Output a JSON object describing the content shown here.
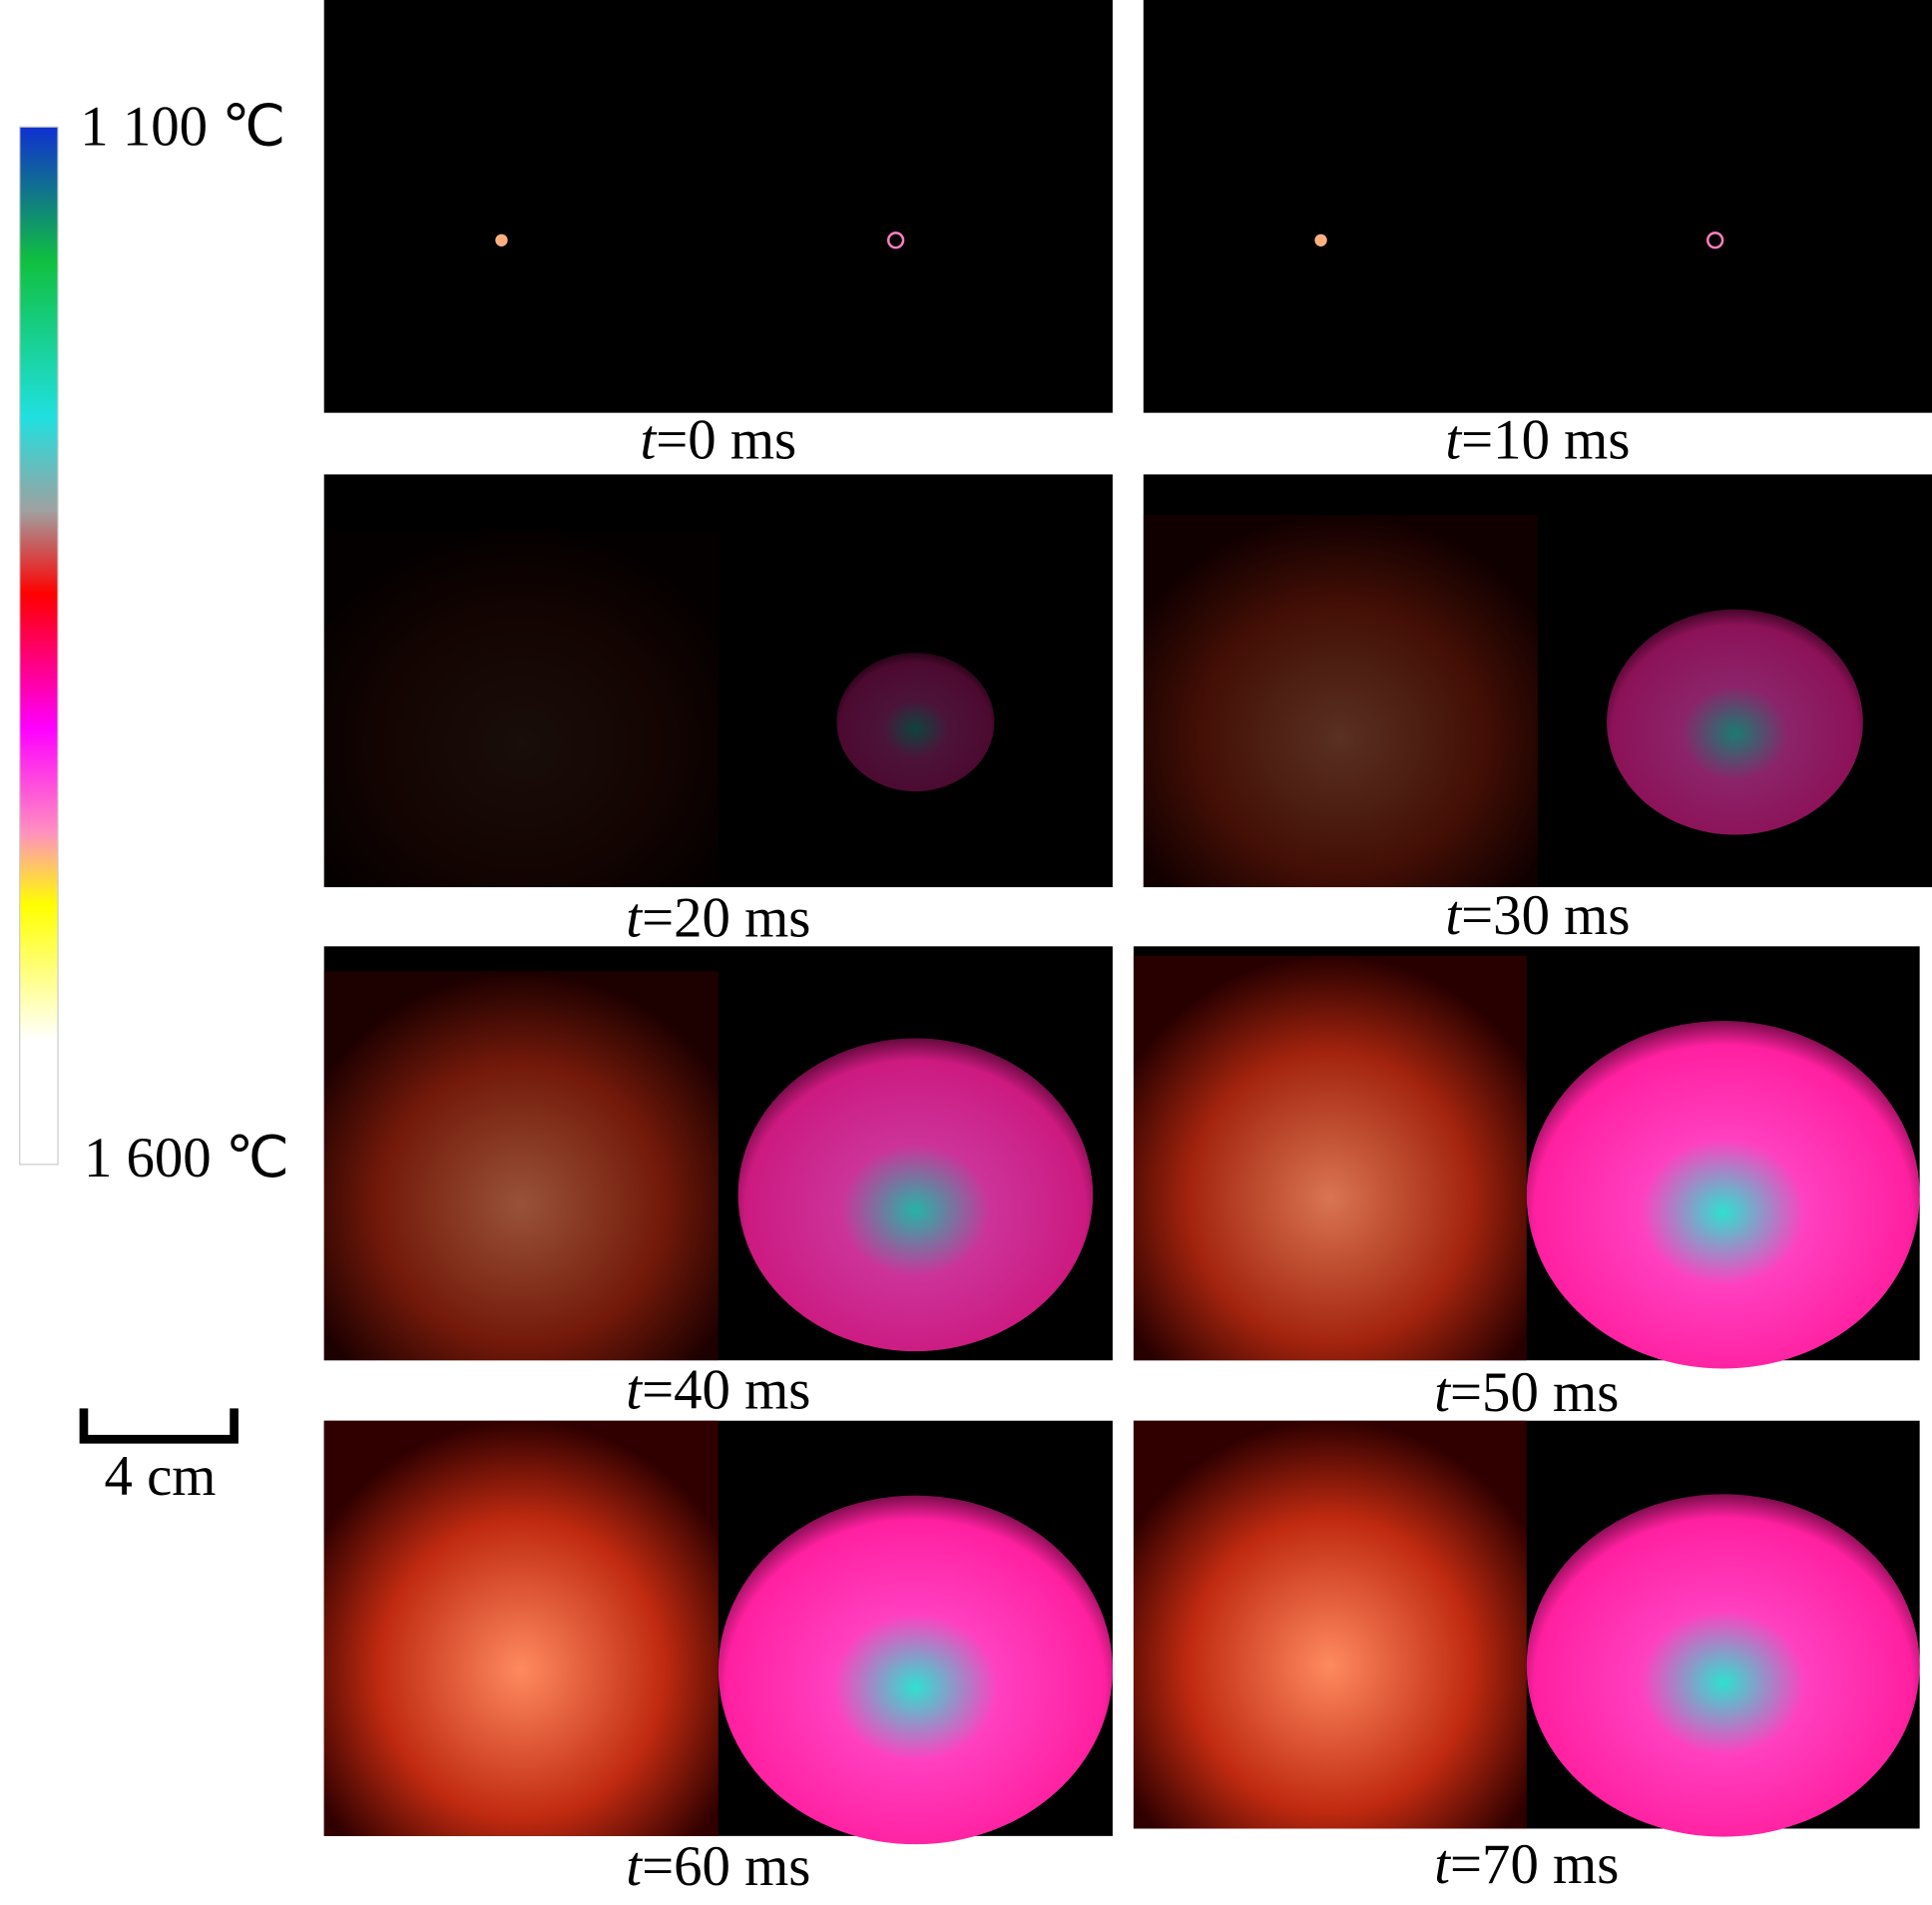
{
  "colorbar": {
    "top_label": "1 100 ℃",
    "bottom_label": "1 600 ℃"
  },
  "scale_bar": {
    "label": "4 cm"
  },
  "panels": [
    {
      "variable": "t",
      "rest": "=0 ms"
    },
    {
      "variable": "t",
      "rest": "=10 ms"
    },
    {
      "variable": "t",
      "rest": "=20 ms"
    },
    {
      "variable": "t",
      "rest": "=30 ms"
    },
    {
      "variable": "t",
      "rest": "=40 ms"
    },
    {
      "variable": "t",
      "rest": "=50 ms"
    },
    {
      "variable": "t",
      "rest": "=60 ms"
    },
    {
      "variable": "t",
      "rest": "=70 ms"
    }
  ]
}
